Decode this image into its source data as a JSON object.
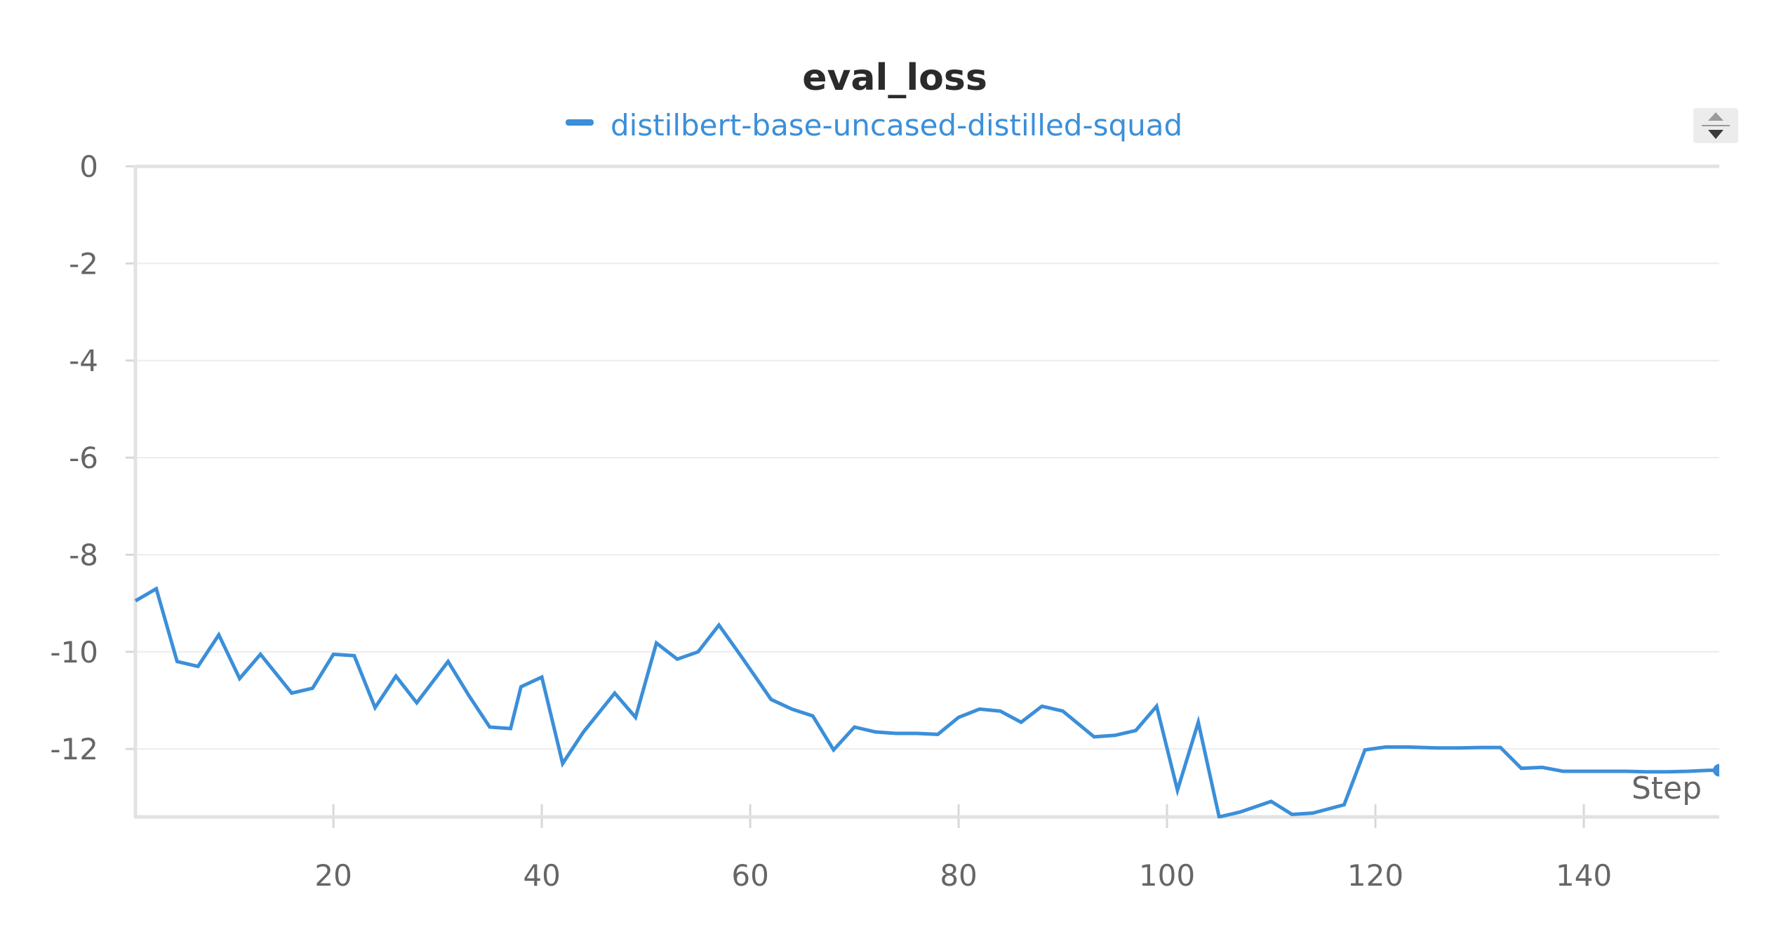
{
  "chart_data": {
    "type": "line",
    "title": "eval_loss",
    "xlabel": "Step",
    "ylabel": "",
    "xlim": [
      1,
      153
    ],
    "ylim": [
      -13.4,
      0
    ],
    "x_ticks": [
      20,
      40,
      60,
      80,
      100,
      120,
      140
    ],
    "y_ticks": [
      0,
      -2,
      -4,
      -6,
      -8,
      -10,
      -12
    ],
    "grid": true,
    "legend": "top-center",
    "series": [
      {
        "name": "distilbert-base-uncased-distilled-squad",
        "color": "#3b8fd9",
        "x": [
          1,
          3,
          5,
          7,
          9,
          11,
          13,
          16,
          18,
          20,
          22,
          24,
          26,
          28,
          31,
          33,
          35,
          37,
          38,
          40,
          42,
          44,
          47,
          49,
          51,
          53,
          55,
          57,
          59,
          62,
          64,
          66,
          68,
          70,
          72,
          74,
          76,
          78,
          80,
          82,
          84,
          86,
          88,
          90,
          93,
          95,
          97,
          99,
          101,
          103,
          105,
          107,
          110,
          112,
          114,
          117,
          119,
          121,
          123,
          126,
          128,
          130,
          132,
          134,
          136,
          138,
          140,
          142,
          144,
          146,
          148,
          150,
          152,
          153
        ],
        "y": [
          -8.95,
          -8.7,
          -10.2,
          -10.3,
          -9.65,
          -10.55,
          -10.05,
          -10.85,
          -10.75,
          -10.05,
          -10.08,
          -11.15,
          -10.5,
          -11.05,
          -10.2,
          -10.9,
          -11.55,
          -11.58,
          -10.72,
          -10.52,
          -12.3,
          -11.65,
          -10.85,
          -11.35,
          -9.82,
          -10.15,
          -10.0,
          -9.45,
          -10.05,
          -10.98,
          -11.18,
          -11.32,
          -12.02,
          -11.55,
          -11.65,
          -11.68,
          -11.68,
          -11.7,
          -11.35,
          -11.18,
          -11.22,
          -11.45,
          -11.12,
          -11.22,
          -11.75,
          -11.72,
          -11.62,
          -11.12,
          -12.85,
          -11.45,
          -13.4,
          -13.3,
          -13.08,
          -13.35,
          -13.32,
          -13.15,
          -12.02,
          -11.96,
          -11.96,
          -11.98,
          -11.98,
          -11.97,
          -11.97,
          -12.4,
          -12.38,
          -12.46,
          -12.46,
          -12.46,
          -12.46,
          -12.47,
          -12.47,
          -12.46,
          -12.44,
          -12.44
        ]
      }
    ]
  },
  "controls": {
    "sort_icon": "sort-toggle-icon"
  }
}
